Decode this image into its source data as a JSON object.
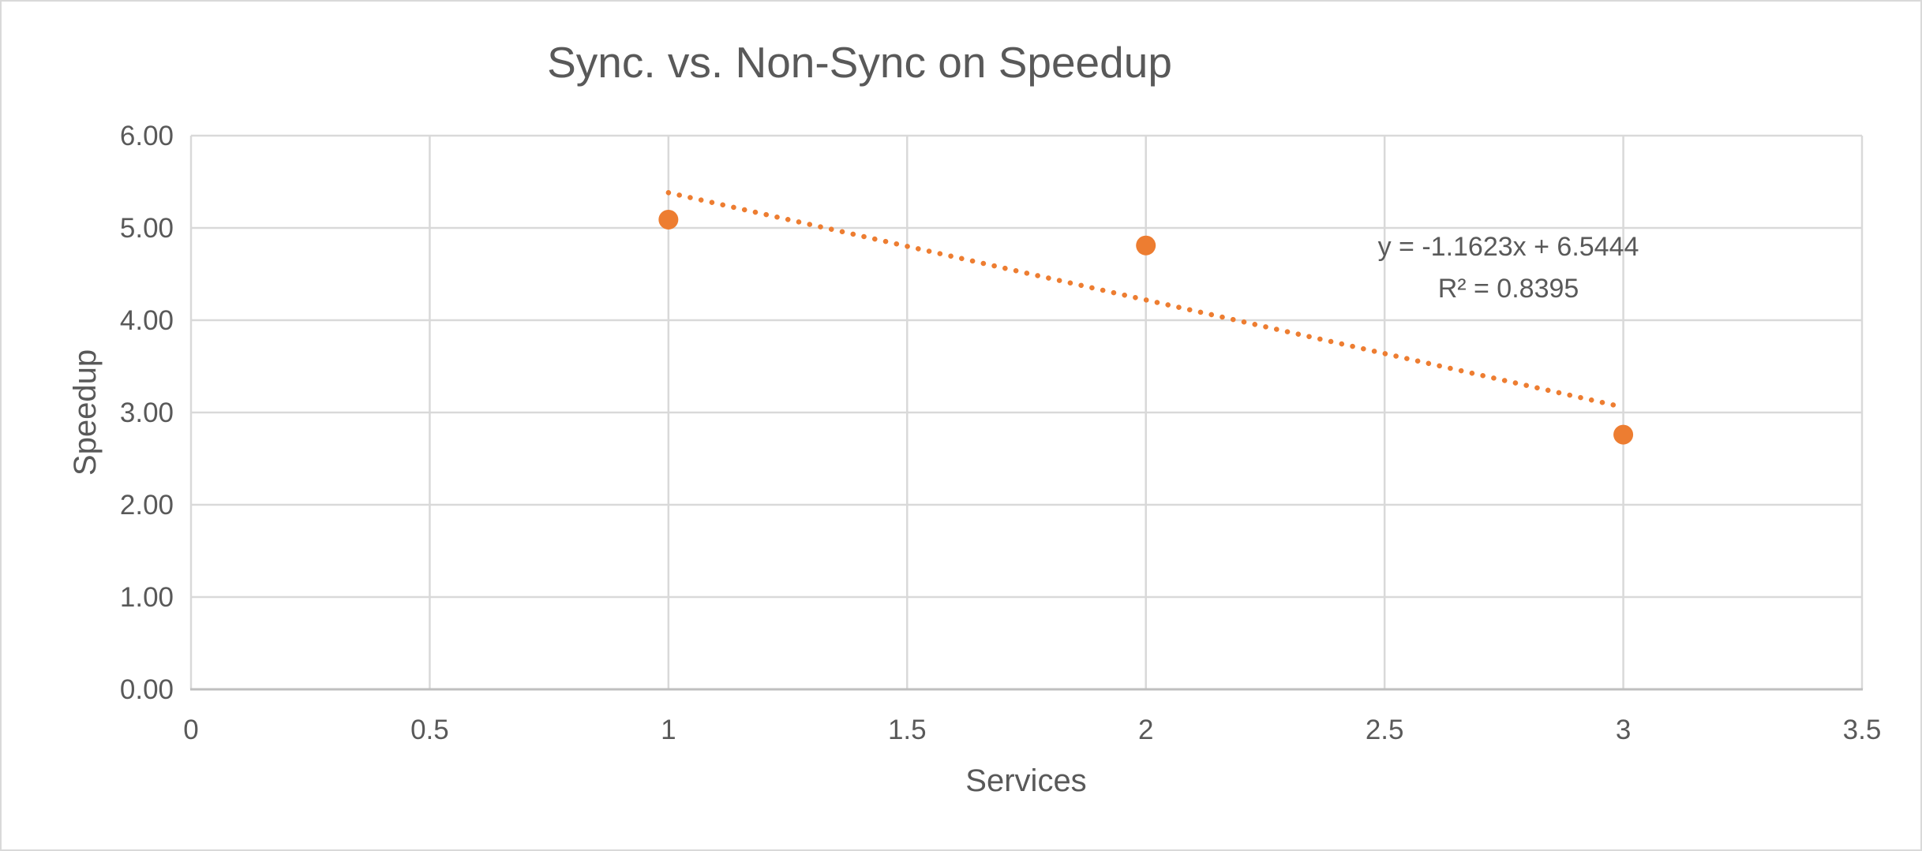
{
  "window": {
    "background": "#ffffff",
    "border_color": "#d9d9d9"
  },
  "colors": {
    "series_orange": "#ED7D31",
    "gridline_gray": "#D9D9D9",
    "axis_line_gray": "#BFBFBF",
    "text_gray": "#595959"
  },
  "chart_data": {
    "type": "scatter",
    "title": "Sync. vs. Non-Sync on Speedup",
    "xlabel": "Services",
    "ylabel": "Speedup",
    "xlim": [
      0,
      3.5
    ],
    "ylim": [
      0,
      6
    ],
    "grid": true,
    "legend": false,
    "x_ticks": [
      {
        "value": 0,
        "label": "0"
      },
      {
        "value": 0.5,
        "label": "0.5"
      },
      {
        "value": 1,
        "label": "1"
      },
      {
        "value": 1.5,
        "label": "1.5"
      },
      {
        "value": 2,
        "label": "2"
      },
      {
        "value": 2.5,
        "label": "2.5"
      },
      {
        "value": 3,
        "label": "3"
      },
      {
        "value": 3.5,
        "label": "3.5"
      }
    ],
    "y_ticks": [
      {
        "value": 0,
        "label": "0.00"
      },
      {
        "value": 1,
        "label": "1.00"
      },
      {
        "value": 2,
        "label": "2.00"
      },
      {
        "value": 3,
        "label": "3.00"
      },
      {
        "value": 4,
        "label": "4.00"
      },
      {
        "value": 5,
        "label": "5.00"
      },
      {
        "value": 6,
        "label": "6.00"
      }
    ],
    "series": [
      {
        "name": "Speedup",
        "marker_color": "#ED7D31",
        "points": [
          {
            "x": 1,
            "y": 5.09
          },
          {
            "x": 2,
            "y": 4.81
          },
          {
            "x": 3,
            "y": 2.76
          }
        ]
      }
    ],
    "trendline": {
      "style": "dotted",
      "color": "#ED7D31",
      "slope": -1.1623,
      "intercept": 6.5444,
      "x_start": 1,
      "x_end": 3,
      "equation_label": "y = -1.1623x + 6.5444",
      "r2_label": "R² = 0.8395"
    }
  }
}
